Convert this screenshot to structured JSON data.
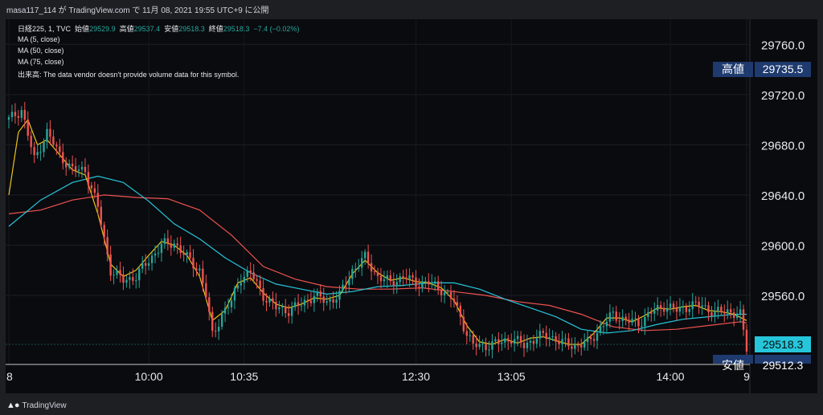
{
  "header": {
    "caption": "masa117_114 が TradingView.com で 11月 08, 2021 19:55 UTC+9 に公開"
  },
  "legend": {
    "symbol": "日経225, 1, TVC",
    "open_label": "始値",
    "open": "29529.9",
    "high_label": "高値",
    "high": "29537.4",
    "low_label": "安値",
    "low": "29518.3",
    "close_label": "終値",
    "close": "29518.3",
    "change": "−7.4 (−0.02%)",
    "ma5": "MA (5, close)",
    "ma50": "MA (50, close)",
    "ma75": "MA (75, close)",
    "volume_note": "出来高: The data vendor doesn't provide volume data for this symbol."
  },
  "price_scale": {
    "ticks": [
      "29760.0",
      "29720.0",
      "29680.0",
      "29640.0",
      "29600.0",
      "29560.0"
    ],
    "high_tag": {
      "label": "高値",
      "value": "29735.5"
    },
    "last_tag": {
      "value": "29518.3"
    },
    "low_tag": {
      "label": "安値",
      "value": "29512.3"
    }
  },
  "time_scale": {
    "ticks": [
      "8",
      "10:00",
      "10:35",
      "12:30",
      "13:05",
      "14:00",
      "9"
    ]
  },
  "footer": {
    "brand": "TradingView"
  },
  "colors": {
    "up": "#26a69a",
    "down": "#ef5350",
    "ma5": "#f0c419",
    "ma50": "#26c6da",
    "ma75": "#ef5350",
    "tag_bg": "#1e3a6e",
    "last_bg": "#26c6da"
  },
  "chart_data": {
    "type": "candlestick",
    "title": "日経225, 1, TVC",
    "ylim": [
      29505,
      29780
    ],
    "x": [
      "8",
      "10:00",
      "10:35",
      "12:30",
      "13:05",
      "14:00",
      "9"
    ],
    "y_ticks": [
      29760,
      29720,
      29680,
      29640,
      29600,
      29560
    ],
    "close_path": [
      [
        0,
        29700
      ],
      [
        4,
        29708
      ],
      [
        8,
        29668
      ],
      [
        12,
        29690
      ],
      [
        16,
        29672
      ],
      [
        20,
        29660
      ],
      [
        24,
        29660
      ],
      [
        28,
        29630
      ],
      [
        32,
        29580
      ],
      [
        36,
        29572
      ],
      [
        40,
        29575
      ],
      [
        44,
        29588
      ],
      [
        48,
        29600
      ],
      [
        52,
        29602
      ],
      [
        56,
        29590
      ],
      [
        60,
        29580
      ],
      [
        62,
        29560
      ],
      [
        64,
        29528
      ],
      [
        67,
        29545
      ],
      [
        70,
        29555
      ],
      [
        73,
        29575
      ],
      [
        76,
        29578
      ],
      [
        80,
        29560
      ],
      [
        84,
        29550
      ],
      [
        88,
        29548
      ],
      [
        92,
        29553
      ],
      [
        96,
        29560
      ],
      [
        100,
        29555
      ],
      [
        104,
        29560
      ],
      [
        108,
        29580
      ],
      [
        112,
        29590
      ],
      [
        116,
        29575
      ],
      [
        120,
        29570
      ],
      [
        124,
        29575
      ],
      [
        128,
        29570
      ],
      [
        132,
        29570
      ],
      [
        136,
        29565
      ],
      [
        140,
        29555
      ],
      [
        144,
        29530
      ],
      [
        146,
        29520
      ],
      [
        150,
        29520
      ],
      [
        154,
        29522
      ],
      [
        158,
        29526
      ],
      [
        162,
        29520
      ],
      [
        166,
        29527
      ],
      [
        170,
        29528
      ],
      [
        174,
        29522
      ],
      [
        178,
        29520
      ],
      [
        182,
        29522
      ],
      [
        186,
        29534
      ],
      [
        190,
        29545
      ],
      [
        194,
        29540
      ],
      [
        198,
        29538
      ],
      [
        202,
        29546
      ],
      [
        206,
        29552
      ],
      [
        210,
        29548
      ],
      [
        214,
        29552
      ],
      [
        218,
        29552
      ],
      [
        222,
        29546
      ],
      [
        226,
        29548
      ],
      [
        230,
        29544
      ],
      [
        232,
        29518
      ]
    ],
    "ma5_path": [
      [
        0,
        29640
      ],
      [
        3,
        29690
      ],
      [
        6,
        29700
      ],
      [
        9,
        29680
      ],
      [
        12,
        29684
      ],
      [
        16,
        29672
      ],
      [
        20,
        29660
      ],
      [
        24,
        29656
      ],
      [
        28,
        29625
      ],
      [
        32,
        29585
      ],
      [
        36,
        29575
      ],
      [
        40,
        29580
      ],
      [
        44,
        29592
      ],
      [
        48,
        29603
      ],
      [
        52,
        29600
      ],
      [
        56,
        29592
      ],
      [
        60,
        29575
      ],
      [
        64,
        29540
      ],
      [
        68,
        29548
      ],
      [
        72,
        29570
      ],
      [
        76,
        29574
      ],
      [
        80,
        29562
      ],
      [
        84,
        29553
      ],
      [
        88,
        29550
      ],
      [
        92,
        29553
      ],
      [
        96,
        29558
      ],
      [
        100,
        29557
      ],
      [
        104,
        29560
      ],
      [
        108,
        29577
      ],
      [
        112,
        29588
      ],
      [
        116,
        29578
      ],
      [
        120,
        29572
      ],
      [
        124,
        29574
      ],
      [
        128,
        29571
      ],
      [
        132,
        29570
      ],
      [
        136,
        29566
      ],
      [
        140,
        29556
      ],
      [
        144,
        29536
      ],
      [
        148,
        29523
      ],
      [
        152,
        29521
      ],
      [
        156,
        29525
      ],
      [
        160,
        29522
      ],
      [
        164,
        29526
      ],
      [
        168,
        29527
      ],
      [
        172,
        29524
      ],
      [
        176,
        29521
      ],
      [
        180,
        29521
      ],
      [
        184,
        29530
      ],
      [
        188,
        29542
      ],
      [
        192,
        29542
      ],
      [
        196,
        29539
      ],
      [
        200,
        29544
      ],
      [
        204,
        29550
      ],
      [
        208,
        29549
      ],
      [
        212,
        29551
      ],
      [
        216,
        29552
      ],
      [
        220,
        29548
      ],
      [
        224,
        29547
      ],
      [
        228,
        29545
      ],
      [
        232,
        29540
      ]
    ],
    "ma50_path": [
      [
        0,
        29615
      ],
      [
        10,
        29636
      ],
      [
        20,
        29650
      ],
      [
        28,
        29655
      ],
      [
        36,
        29650
      ],
      [
        44,
        29635
      ],
      [
        52,
        29617
      ],
      [
        60,
        29605
      ],
      [
        68,
        29590
      ],
      [
        76,
        29578
      ],
      [
        84,
        29569
      ],
      [
        92,
        29565
      ],
      [
        100,
        29561
      ],
      [
        108,
        29563
      ],
      [
        116,
        29567
      ],
      [
        124,
        29568
      ],
      [
        132,
        29570
      ],
      [
        140,
        29570
      ],
      [
        148,
        29565
      ],
      [
        156,
        29557
      ],
      [
        164,
        29550
      ],
      [
        172,
        29543
      ],
      [
        180,
        29533
      ],
      [
        188,
        29530
      ],
      [
        196,
        29532
      ],
      [
        204,
        29537
      ],
      [
        212,
        29541
      ],
      [
        220,
        29543
      ],
      [
        228,
        29545
      ],
      [
        232,
        29545
      ]
    ],
    "ma75_path": [
      [
        0,
        29625
      ],
      [
        10,
        29628
      ],
      [
        20,
        29636
      ],
      [
        30,
        29640
      ],
      [
        40,
        29638
      ],
      [
        50,
        29637
      ],
      [
        60,
        29628
      ],
      [
        70,
        29608
      ],
      [
        80,
        29583
      ],
      [
        90,
        29573
      ],
      [
        100,
        29567
      ],
      [
        110,
        29565
      ],
      [
        120,
        29565
      ],
      [
        130,
        29566
      ],
      [
        140,
        29563
      ],
      [
        150,
        29560
      ],
      [
        160,
        29555
      ],
      [
        170,
        29552
      ],
      [
        180,
        29545
      ],
      [
        190,
        29535
      ],
      [
        200,
        29532
      ],
      [
        210,
        29533
      ],
      [
        220,
        29536
      ],
      [
        230,
        29539
      ],
      [
        232,
        29538
      ]
    ]
  }
}
